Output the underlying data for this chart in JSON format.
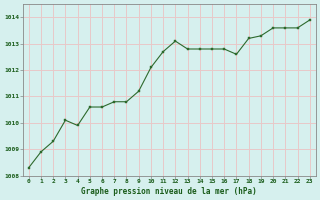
{
  "x": [
    0,
    1,
    2,
    3,
    4,
    5,
    6,
    7,
    8,
    9,
    10,
    11,
    12,
    13,
    14,
    15,
    16,
    17,
    18,
    19,
    20,
    21,
    22,
    23
  ],
  "y": [
    1008.3,
    1008.9,
    1009.3,
    1010.1,
    1009.9,
    1010.6,
    1010.6,
    1010.8,
    1010.8,
    1011.2,
    1012.1,
    1012.7,
    1013.1,
    1012.8,
    1012.8,
    1012.8,
    1012.8,
    1012.6,
    1013.2,
    1013.3,
    1013.6,
    1013.6,
    1013.6,
    1013.9
  ],
  "line_color": "#2d6a2d",
  "marker_color": "#2d6a2d",
  "bg_color": "#d6f0ee",
  "grid_color": "#e8c8c8",
  "xlabel": "Graphe pression niveau de la mer (hPa)",
  "xlabel_color": "#1a5c1a",
  "tick_color": "#1a5c1a",
  "spine_color": "#888888",
  "ylim": [
    1008,
    1014.5
  ],
  "xlim": [
    -0.5,
    23.5
  ],
  "yticks": [
    1008,
    1009,
    1010,
    1011,
    1012,
    1013,
    1014
  ],
  "xticks": [
    0,
    1,
    2,
    3,
    4,
    5,
    6,
    7,
    8,
    9,
    10,
    11,
    12,
    13,
    14,
    15,
    16,
    17,
    18,
    19,
    20,
    21,
    22,
    23
  ]
}
